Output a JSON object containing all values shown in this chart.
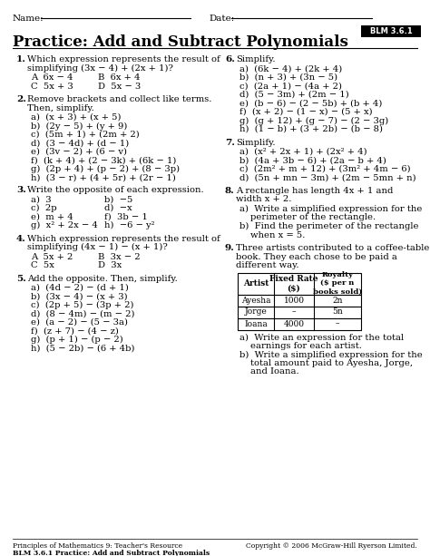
{
  "title": "Practice: Add and Subtract Polynomials",
  "blm_label": "BLM 3.6.1",
  "footer_left1": "Principles of Mathematics 9: Teacher's Resource",
  "footer_left2": "BLM 3.6.1 Practice: Add and Subtract Polynomials",
  "footer_right": "Copyright © 2006 McGraw-Hill Ryerson Limited.",
  "background": "#ffffff",
  "q1_header": "Which expression represents the result of simplifying (3x − 4) + (2x + 1)?",
  "q1_choices": [
    [
      "A  6x − 4",
      "B  6x + 4"
    ],
    [
      "C  5x + 3",
      "D  5x − 3"
    ]
  ],
  "q2_header": "Remove brackets and collect like terms. Then, simplify.",
  "q2_parts": [
    "a)  (x + 3) + (x + 5)",
    "b)  (2y − 5) + (y + 9)",
    "c)  (5m + 1) + (2m + 2)",
    "d)  (3 − 4d) + (d − 1)",
    "e)  (3v − 2) + (6 − v)",
    "f)  (k + 4) + (2 − 3k) + (6k − 1)",
    "g)  (2p + 4) + (p − 2) + (8 − 3p)",
    "h)  (3 − r) + (4 + 5r) + (2r − 1)"
  ],
  "q3_header": "Write the opposite of each expression.",
  "q3_parts": [
    [
      "a)  3",
      "b)  −5"
    ],
    [
      "c)  2p",
      "d)  −x"
    ],
    [
      "e)  m + 4",
      "f)  3b − 1"
    ],
    [
      "g)  x² + 2x − 4",
      "h)  −6 − y²"
    ]
  ],
  "q4_header": "Which expression represents the result of simplifying (4x − 1) − (x + 1)?",
  "q4_choices": [
    [
      "A  5x + 2",
      "B  3x − 2"
    ],
    [
      "C  5x",
      "D  3x"
    ]
  ],
  "q5_header": "Add the opposite. Then, simplify.",
  "q5_parts": [
    "a)  (4d − 2) − (d + 1)",
    "b)  (3x − 4) − (x + 3)",
    "c)  (2p + 5) − (3p + 2)",
    "d)  (8 − 4m) − (m − 2)",
    "e)  (a − 2) − (5 − 3a)",
    "f)  (z + 7) − (4 − z)",
    "g)  (p + 1) − (p − 2)",
    "h)  (5 − 2b) − (6 + 4b)"
  ],
  "q6_header": "Simplify.",
  "q6_parts": [
    "a)  (6k − 4) + (2k + 4)",
    "b)  (n + 3) + (3n − 5)",
    "c)  (2a + 1) − (4a + 2)",
    "d)  (5 − 3m) + (2m − 1)",
    "e)  (b − 6) − (2 − 5b) + (b + 4)",
    "f)  (x + 2) − (1 − x) − (5 + x)",
    "g)  (g + 12) + (g − 7) − (2 − 3g)",
    "h)  (1 − b) + (3 + 2b) − (b − 8)"
  ],
  "q7_header": "Simplify.",
  "q7_parts": [
    "a)  (x² + 2x + 1) + (2x² + 4)",
    "b)  (4a + 3b − 6) + (2a − b + 4)",
    "c)  (2m² + m + 12) + (3m² + 4m − 6)",
    "d)  (5n + mn − 3m) + (2m − 5mn + n)"
  ],
  "q8_header1": "A rectangle has length 4x + 1 and",
  "q8_header2": "width x + 2.",
  "q8_parts": [
    [
      "a)  Write a simplified expression for the",
      "perimeter of the rectangle."
    ],
    [
      "b)  Find the perimeter of the rectangle",
      "when x = 5."
    ]
  ],
  "q9_header1": "Three artists contributed to a coffee-table",
  "q9_header2": "book. They each chose to be paid a",
  "q9_header3": "different way.",
  "q9_table_rows": [
    [
      "Ayesha",
      "1000",
      "2n"
    ],
    [
      "Jorge",
      "–",
      "5n"
    ],
    [
      "Ioana",
      "4000",
      "–"
    ]
  ],
  "q9_parts": [
    [
      "a)  Write an expression for the total",
      "earnings for each artist."
    ],
    [
      "b)  Write a simplified expression for the",
      "total amount paid to Ayesha, Jorge,",
      "and Ioana."
    ]
  ]
}
